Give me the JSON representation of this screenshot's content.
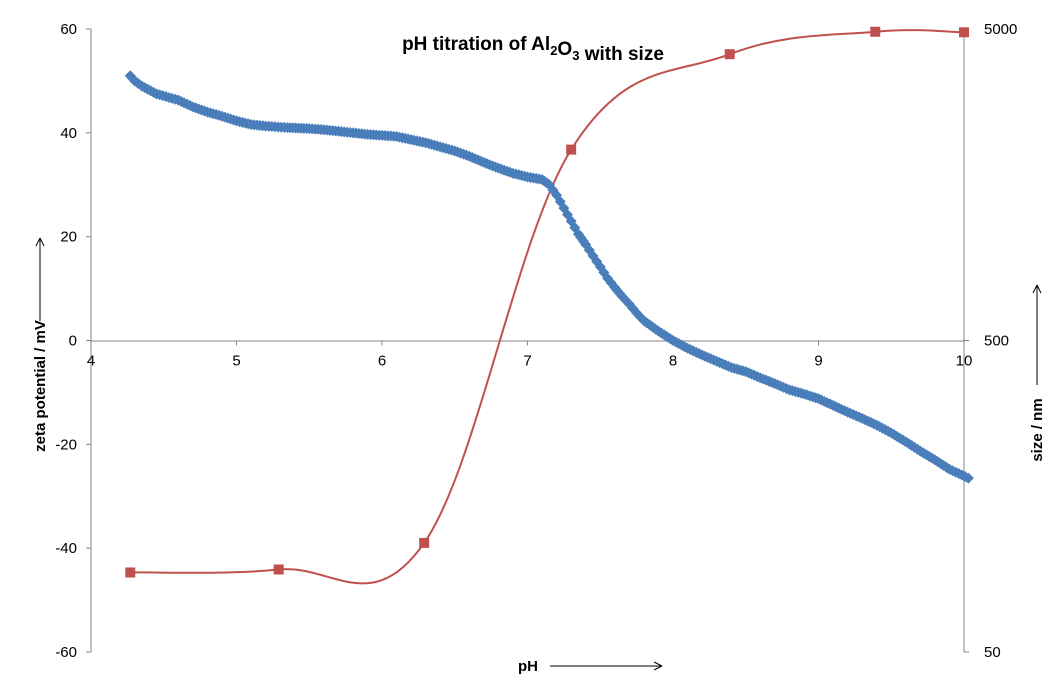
{
  "chart_data": {
    "type": "line",
    "title_parts": [
      "pH titration of Al",
      "2",
      "O",
      "3",
      " with size"
    ],
    "xlabel": "pH",
    "ylabel": "zeta potential / mV",
    "y2label": "size / nm",
    "xlim": [
      4,
      10
    ],
    "ylim": [
      -60,
      60
    ],
    "y2lim": [
      50,
      5000
    ],
    "y2scale": "log",
    "xticks": [
      4,
      5,
      6,
      7,
      8,
      9,
      10
    ],
    "yticks": [
      60,
      40,
      20,
      0,
      -20,
      -40,
      -60
    ],
    "y2ticks": [
      5000,
      500,
      50
    ],
    "grid": false,
    "colors": {
      "zeta": "#4a7ebb",
      "size": "#c0504d"
    },
    "series": [
      {
        "axis": "left",
        "marker": "diamond",
        "points": [
          [
            4.27,
            51
          ],
          [
            4.3,
            50
          ],
          [
            4.35,
            49
          ],
          [
            4.45,
            47.5
          ],
          [
            4.6,
            46.3
          ],
          [
            4.7,
            45
          ],
          [
            4.8,
            44
          ],
          [
            4.9,
            43.2
          ],
          [
            5.0,
            42.3
          ],
          [
            5.1,
            41.6
          ],
          [
            5.2,
            41.3
          ],
          [
            5.35,
            41
          ],
          [
            5.5,
            40.8
          ],
          [
            5.6,
            40.6
          ],
          [
            5.7,
            40.3
          ],
          [
            5.8,
            40
          ],
          [
            5.9,
            39.7
          ],
          [
            6.0,
            39.5
          ],
          [
            6.1,
            39.3
          ],
          [
            6.2,
            38.7
          ],
          [
            6.3,
            38.1
          ],
          [
            6.4,
            37.3
          ],
          [
            6.5,
            36.5
          ],
          [
            6.6,
            35.5
          ],
          [
            6.7,
            34.3
          ],
          [
            6.8,
            33.2
          ],
          [
            6.9,
            32.2
          ],
          [
            7.0,
            31.5
          ],
          [
            7.1,
            31
          ],
          [
            7.15,
            30
          ],
          [
            7.2,
            28
          ],
          [
            7.25,
            25.5
          ],
          [
            7.3,
            23
          ],
          [
            7.35,
            20.5
          ],
          [
            7.4,
            18.5
          ],
          [
            7.45,
            16.3
          ],
          [
            7.5,
            14.2
          ],
          [
            7.55,
            12
          ],
          [
            7.6,
            10.2
          ],
          [
            7.65,
            8.5
          ],
          [
            7.7,
            7
          ],
          [
            7.75,
            5.3
          ],
          [
            7.8,
            3.8
          ],
          [
            7.9,
            1.8
          ],
          [
            8.0,
            0
          ],
          [
            8.1,
            -1.5
          ],
          [
            8.2,
            -2.8
          ],
          [
            8.3,
            -4
          ],
          [
            8.4,
            -5.2
          ],
          [
            8.5,
            -6
          ],
          [
            8.6,
            -7.2
          ],
          [
            8.7,
            -8.3
          ],
          [
            8.8,
            -9.5
          ],
          [
            8.9,
            -10.3
          ],
          [
            9.0,
            -11.2
          ],
          [
            9.1,
            -12.5
          ],
          [
            9.2,
            -13.8
          ],
          [
            9.3,
            -15
          ],
          [
            9.4,
            -16.3
          ],
          [
            9.5,
            -17.8
          ],
          [
            9.6,
            -19.5
          ],
          [
            9.7,
            -21.3
          ],
          [
            9.8,
            -23
          ],
          [
            9.9,
            -24.8
          ],
          [
            10.03,
            -26.5
          ]
        ]
      },
      {
        "axis": "right",
        "marker": "square",
        "points": [
          [
            4.27,
            90
          ],
          [
            5.29,
            92
          ],
          [
            6.29,
            112
          ],
          [
            7.3,
            2050
          ],
          [
            8.39,
            4150
          ],
          [
            9.39,
            4900
          ],
          [
            10.0,
            4880
          ]
        ]
      }
    ]
  }
}
